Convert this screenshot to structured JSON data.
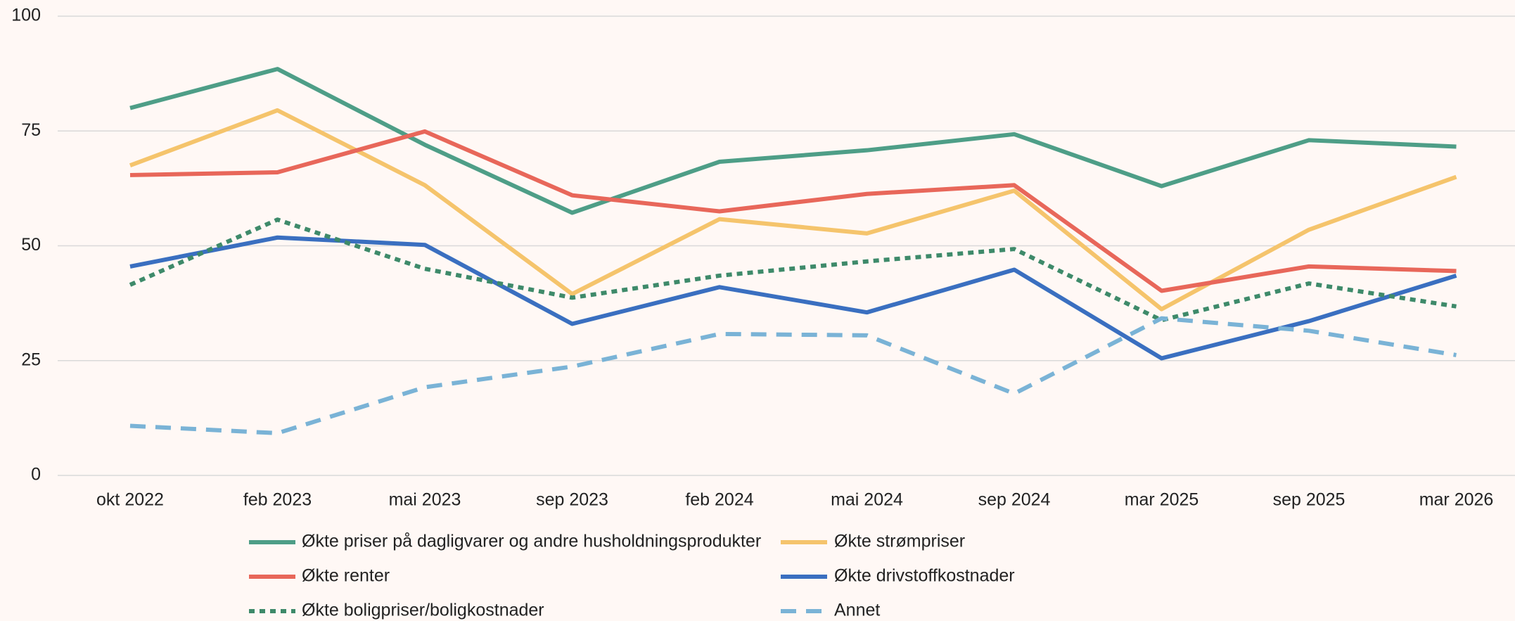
{
  "chart_data": {
    "type": "line",
    "categories": [
      "okt 2022",
      "feb 2023",
      "mai 2023",
      "sep 2023",
      "feb 2024",
      "mai 2024",
      "sep 2024",
      "mar 2025",
      "sep 2025",
      "mar 2026"
    ],
    "ylim": [
      0,
      100
    ],
    "yticks": [
      0,
      25,
      50,
      75,
      100
    ],
    "grid": true,
    "series": [
      {
        "name": "Økte priser på dagligvarer og andre husholdningsprodukter",
        "color": "#4e9e87",
        "line_style": "solid",
        "values": [
          80,
          88.5,
          72,
          57.2,
          68.3,
          70.8,
          74.3,
          63,
          73,
          71.6
        ]
      },
      {
        "name": "Økte strømpriser",
        "color": "#f5c46c",
        "line_style": "solid",
        "values": [
          67.5,
          79.5,
          63.2,
          39.5,
          55.8,
          52.7,
          62,
          36.2,
          53.5,
          65
        ]
      },
      {
        "name": "Økte renter",
        "color": "#e8675a",
        "line_style": "solid",
        "values": [
          65.4,
          66,
          74.9,
          61,
          57.5,
          61.3,
          63.2,
          40.2,
          45.5,
          44.5
        ]
      },
      {
        "name": "Økte drivstoffkostnader",
        "color": "#3a6fc0",
        "line_style": "solid",
        "values": [
          45.5,
          51.8,
          50.2,
          33,
          41,
          35.5,
          44.8,
          25.5,
          33.6,
          43.5
        ]
      },
      {
        "name": "Økte boligpriser/boligkostnader",
        "color": "#3e8a6a",
        "line_style": "dotted",
        "values": [
          41.5,
          55.7,
          45,
          38.7,
          43.5,
          46.6,
          49.3,
          33.8,
          41.8,
          36.8
        ]
      },
      {
        "name": "Annet",
        "color": "#7ab3d6",
        "line_style": "dashed",
        "values": [
          10.8,
          9.2,
          19.2,
          23.7,
          30.8,
          30.5,
          17.8,
          34.2,
          31.5,
          26.2
        ]
      }
    ]
  }
}
